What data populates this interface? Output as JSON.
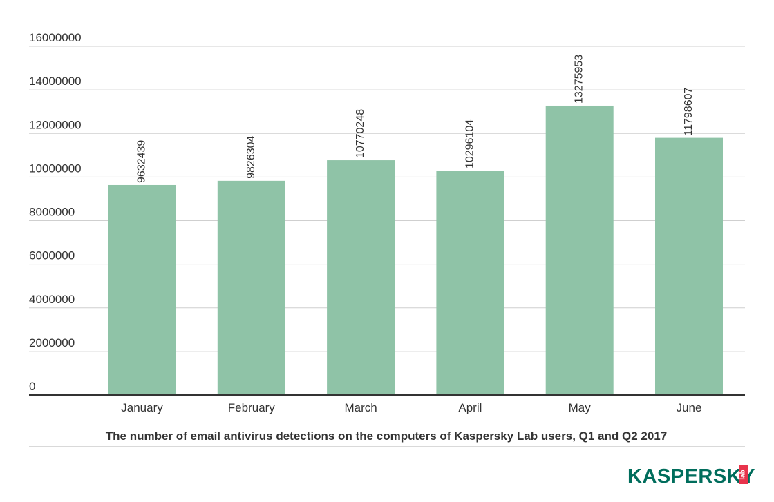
{
  "chart_data": {
    "type": "bar",
    "title": "The number of email antivirus detections on the computers of Kaspersky Lab users, Q1 and Q2 2017",
    "categories": [
      "January",
      "February",
      "March",
      "April",
      "May",
      "June"
    ],
    "values": [
      9632439,
      9826304,
      10770248,
      10296104,
      13275953,
      11798607
    ],
    "data_labels": [
      "9632439",
      "9826304",
      "10770248",
      "10296104",
      "13275953",
      "11798607"
    ],
    "yticks": [
      "0",
      "2000000",
      "4000000",
      "6000000",
      "8000000",
      "10000000",
      "12000000",
      "14000000",
      "16000000"
    ],
    "ylim": [
      0,
      16000000
    ],
    "grid": true,
    "legend": "none",
    "bar_color": "#8fc3a7"
  },
  "logo": {
    "text": "KASPERSKY",
    "lab": "lab",
    "color": "#006d5c",
    "lab_color": "#e8344c"
  }
}
